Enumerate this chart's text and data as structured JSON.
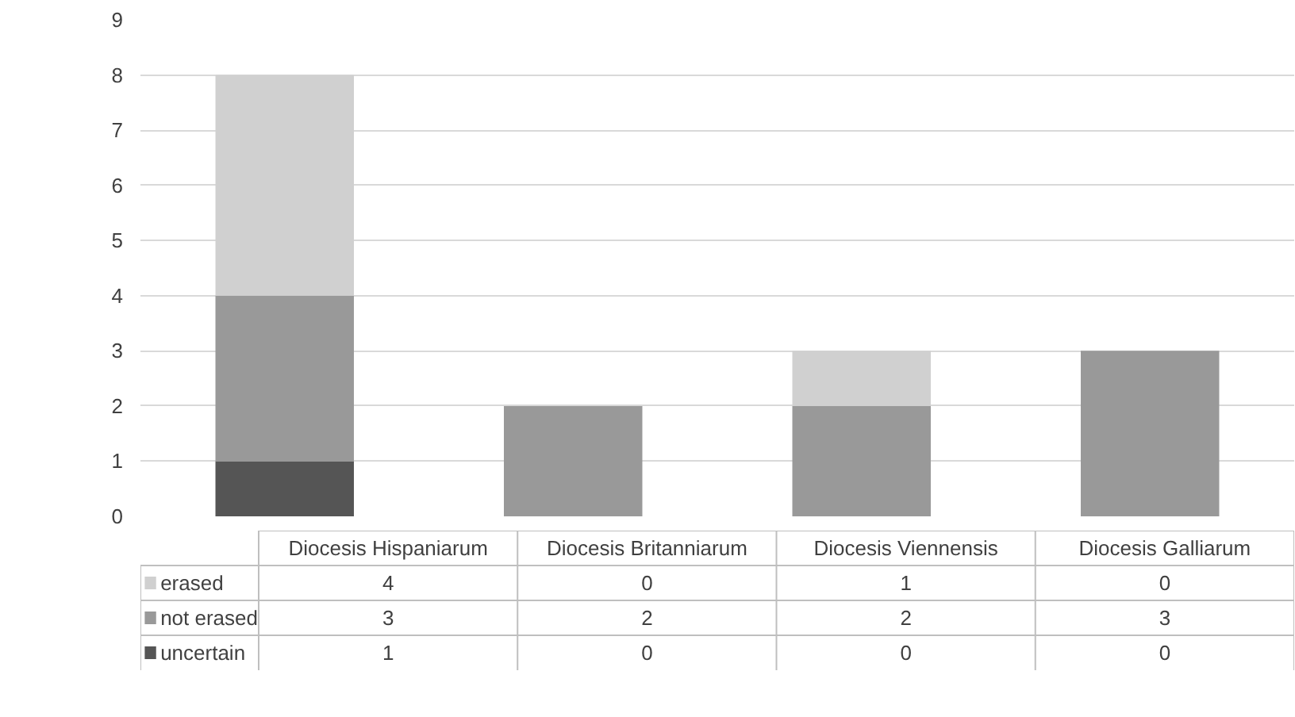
{
  "chart_data": {
    "type": "bar",
    "stacked": true,
    "categories": [
      "Diocesis Hispaniarum",
      "Diocesis Britanniarum",
      "Diocesis Viennensis",
      "Diocesis Galliarum"
    ],
    "series": [
      {
        "name": "uncertain",
        "color": "#555555",
        "values": [
          1,
          0,
          0,
          0
        ]
      },
      {
        "name": "not erased",
        "color": "#999999",
        "values": [
          3,
          2,
          2,
          3
        ]
      },
      {
        "name": "erased",
        "color": "#d0d0d0",
        "values": [
          4,
          0,
          1,
          0
        ]
      }
    ],
    "ylim": [
      0,
      9
    ],
    "yticks": [
      0,
      1,
      2,
      3,
      4,
      5,
      6,
      7,
      8,
      9
    ],
    "grid": "y",
    "data_labels": true,
    "legend": "bottom"
  }
}
